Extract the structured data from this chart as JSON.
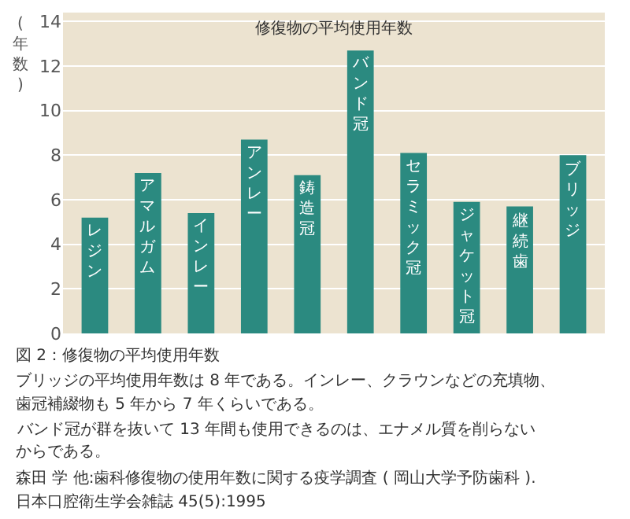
{
  "chart_data": {
    "type": "bar",
    "title": "修復物の平均使用年数",
    "ylabel": "(年数)",
    "categories": [
      "レジン",
      "アマルガム",
      "インレー",
      "アンレー",
      "鋳造冠",
      "バンド冠",
      "セラミック冠",
      "ジャケット冠",
      "継続歯",
      "ブリッジ"
    ],
    "values": [
      5.2,
      7.2,
      5.4,
      8.7,
      7.1,
      12.7,
      8.1,
      5.9,
      5.7,
      8.0
    ],
    "color": "#2b8a80",
    "ylim": [
      0,
      14.4
    ],
    "yticks": [
      0,
      2,
      4,
      6,
      8,
      10,
      12,
      14
    ],
    "grid": "y",
    "tick_labels": "y",
    "legend": false,
    "annotations": [
      "図 2：修復物の平均使用年数",
      "ブリッジの平均使用年数は 8 年である。インレー、クラウンなどの充填物、",
      "歯冠補綴物も 5 年から 7 年くらいである。",
      "バンド冠が群を抜いて 13 年間も使用できるのは、エナメル質を削らない",
      "からである。",
      "森田 学 他:歯科修復物の使用年数に関する疫学調査 ( 岡山大学予防歯科 ).",
      "日本口腔衛生学会雑誌 45(5):1995"
    ]
  }
}
